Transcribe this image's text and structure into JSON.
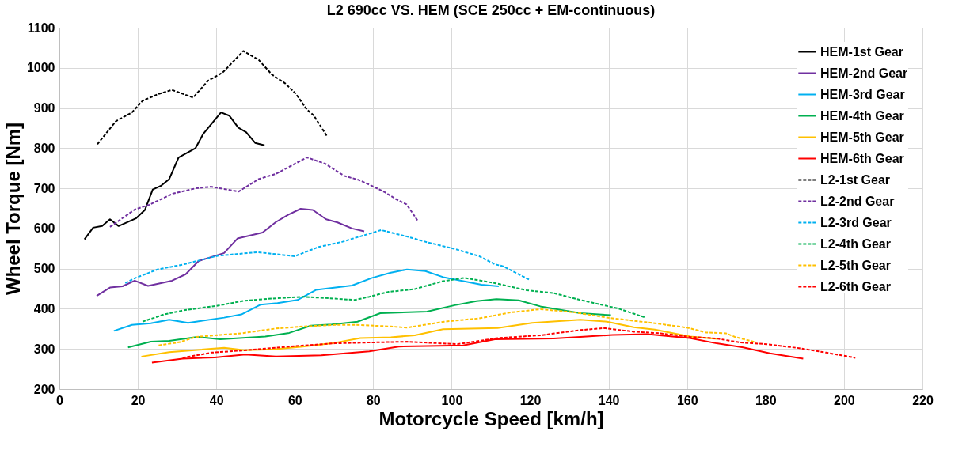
{
  "chart_data": {
    "type": "line",
    "title": "L2 690cc VS. HEM (SCE 250cc + EM-continuous)",
    "xlabel": "Motorcycle Speed [km/h]",
    "ylabel": "Wheel Torque [Nm]",
    "xlim": [
      0,
      220
    ],
    "xticks": [
      0,
      20,
      40,
      60,
      80,
      100,
      120,
      140,
      160,
      180,
      200,
      220
    ],
    "ylim": [
      200,
      1100
    ],
    "yticks": [
      200,
      300,
      400,
      500,
      600,
      700,
      800,
      900,
      1000,
      1100
    ],
    "grid": true,
    "legend": "top right",
    "marker": "none",
    "series": [
      {
        "name": "HEM-1st Gear",
        "color": "#000000",
        "line_style": "solid",
        "x": [
          6.4,
          8.6,
          10.9,
          12.9,
          15.1,
          19.5,
          21.8,
          23.8,
          26,
          28,
          30.4,
          34.7,
          36.7,
          41.2,
          43.3,
          45.6,
          47.6,
          49.9,
          52.3
        ],
        "values": [
          573,
          602,
          606,
          623,
          606,
          625,
          646,
          697,
          707,
          723,
          777,
          800,
          836,
          889,
          881,
          851,
          840,
          813,
          807
        ]
      },
      {
        "name": "HEM-2nd Gear",
        "color": "#7030a0",
        "line_style": "solid",
        "x": [
          9.5,
          12.9,
          16.1,
          19.2,
          22.6,
          28.7,
          32.2,
          35.5,
          42,
          45.4,
          51.8,
          55.2,
          58.3,
          61.5,
          64.6,
          68,
          70.9,
          74.6,
          77.7
        ],
        "values": [
          432,
          453,
          456,
          470,
          457,
          470,
          486,
          519,
          539,
          575,
          590,
          616,
          634,
          649,
          646,
          623,
          615,
          600,
          593
        ]
      },
      {
        "name": "HEM-3rd Gear",
        "color": "#00b0f0",
        "line_style": "solid",
        "x": [
          13.9,
          18.5,
          23.3,
          28,
          32.8,
          42,
          46.4,
          51.2,
          55.6,
          60.7,
          65.4,
          74.6,
          79.7,
          84.5,
          88.6,
          93.3,
          98.1,
          107.6,
          112
        ],
        "values": [
          345,
          360,
          364,
          373,
          365,
          378,
          386,
          410,
          414,
          422,
          447,
          458,
          477,
          490,
          498,
          494,
          478,
          460,
          456
        ]
      },
      {
        "name": "HEM-4th Gear",
        "color": "#00b050",
        "line_style": "solid",
        "x": [
          17.5,
          23.3,
          28,
          35.2,
          41,
          52.5,
          58.6,
          64.1,
          69.5,
          76,
          81.8,
          93.7,
          100.8,
          106.3,
          111.4,
          117.1,
          122.6,
          132.8,
          140.6
        ],
        "values": [
          304,
          318,
          320,
          330,
          324,
          331,
          340,
          358,
          361,
          368,
          389,
          393,
          409,
          419,
          424,
          421,
          406,
          389,
          384
        ]
      },
      {
        "name": "HEM-5th Gear",
        "color": "#ffc000",
        "line_style": "solid",
        "x": [
          20.9,
          28,
          34.5,
          42,
          47.1,
          54.6,
          62,
          69.5,
          76.7,
          84.5,
          90.6,
          97.8,
          111.7,
          120.5,
          132.8,
          139.6,
          146.4,
          151.8,
          160.7,
          167.8
        ],
        "values": [
          281,
          292,
          297,
          303,
          297,
          299,
          306,
          314,
          327,
          329,
          334,
          349,
          352,
          365,
          373,
          368,
          354,
          348,
          331,
          325
        ]
      },
      {
        "name": "HEM-6th Gear",
        "color": "#ff0000",
        "line_style": "solid",
        "x": [
          23.6,
          31.4,
          39.6,
          47.4,
          55.2,
          66.8,
          79,
          86.5,
          102.9,
          111,
          126,
          132.8,
          141,
          149.8,
          160.7,
          167.5,
          174.3,
          181.1,
          189.6
        ],
        "values": [
          266,
          276,
          279,
          286,
          281,
          284,
          294,
          306,
          309,
          324,
          326,
          330,
          335,
          337,
          327,
          314,
          304,
          289,
          276
        ]
      },
      {
        "name": "L2-1st Gear",
        "color": "#000000",
        "line_style": "dashed",
        "x": [
          9.7,
          14.4,
          18.5,
          21.2,
          25.3,
          28.7,
          34.1,
          37.9,
          41.6,
          46.9,
          50.8,
          54.2,
          57.6,
          60.3,
          63.1,
          64.8,
          68.2
        ],
        "values": [
          810,
          867,
          889,
          918,
          935,
          945,
          926,
          968,
          988,
          1042,
          1020,
          983,
          961,
          935,
          896,
          882,
          830
        ]
      },
      {
        "name": "L2-2nd Gear",
        "color": "#7030a0",
        "line_style": "dashed",
        "x": [
          12.9,
          19.2,
          22.9,
          29,
          34.8,
          38.6,
          45.7,
          50.8,
          55.2,
          63.1,
          67.8,
          72.6,
          76.3,
          79.5,
          83,
          86,
          88.5,
          91.3
        ],
        "values": [
          604,
          647,
          659,
          687,
          700,
          704,
          692,
          723,
          736,
          777,
          761,
          731,
          721,
          707,
          690,
          672,
          660,
          620
        ]
      },
      {
        "name": "L2-3rd Gear",
        "color": "#00b0f0",
        "line_style": "dashed",
        "x": [
          16.8,
          19.2,
          25,
          31.4,
          35.9,
          40.3,
          50.5,
          60,
          66.1,
          72.2,
          82,
          88.6,
          94,
          100.8,
          107,
          111,
          113.1,
          119.7
        ],
        "values": [
          464,
          476,
          498,
          510,
          521,
          532,
          541,
          531,
          554,
          567,
          596,
          580,
          565,
          549,
          531,
          511,
          506,
          473
        ]
      },
      {
        "name": "L2-4th Gear",
        "color": "#00b050",
        "line_style": "dashed",
        "x": [
          21.2,
          26.7,
          32.1,
          39.9,
          47.1,
          53.2,
          62,
          67.5,
          75.3,
          79,
          83.8,
          90.6,
          97.4,
          103.2,
          111,
          119.2,
          126,
          132.8,
          139.6,
          142.3,
          149.5
        ],
        "values": [
          368,
          386,
          397,
          407,
          420,
          425,
          430,
          427,
          422,
          430,
          442,
          449,
          468,
          477,
          464,
          446,
          439,
          422,
          407,
          401,
          378
        ]
      },
      {
        "name": "L2-5th Gear",
        "color": "#ffc000",
        "line_style": "dashed",
        "x": [
          25.3,
          30.8,
          34.8,
          41,
          46.4,
          55.2,
          62,
          70.2,
          75.7,
          84.5,
          88.6,
          98.1,
          106.9,
          115.1,
          122.6,
          131.4,
          139.6,
          151.8,
          160,
          164.8,
          169.9,
          172.2,
          177.7
        ],
        "values": [
          309,
          317,
          330,
          335,
          339,
          351,
          356,
          360,
          360,
          356,
          353,
          368,
          376,
          391,
          399,
          391,
          378,
          364,
          353,
          341,
          339,
          330,
          316
        ]
      },
      {
        "name": "L2-6th Gear",
        "color": "#ff0000",
        "line_style": "dashed",
        "x": [
          31.4,
          38.9,
          47.8,
          60,
          70.2,
          78.4,
          88.6,
          101.5,
          111.7,
          122.6,
          132.8,
          138.9,
          146.4,
          153.2,
          160.7,
          167.5,
          173.6,
          180.4,
          188.6,
          195.4,
          202.9
        ],
        "values": [
          278,
          291,
          297,
          307,
          314,
          316,
          318,
          312,
          327,
          334,
          347,
          352,
          343,
          339,
          330,
          326,
          316,
          312,
          302,
          291,
          278
        ]
      }
    ]
  }
}
